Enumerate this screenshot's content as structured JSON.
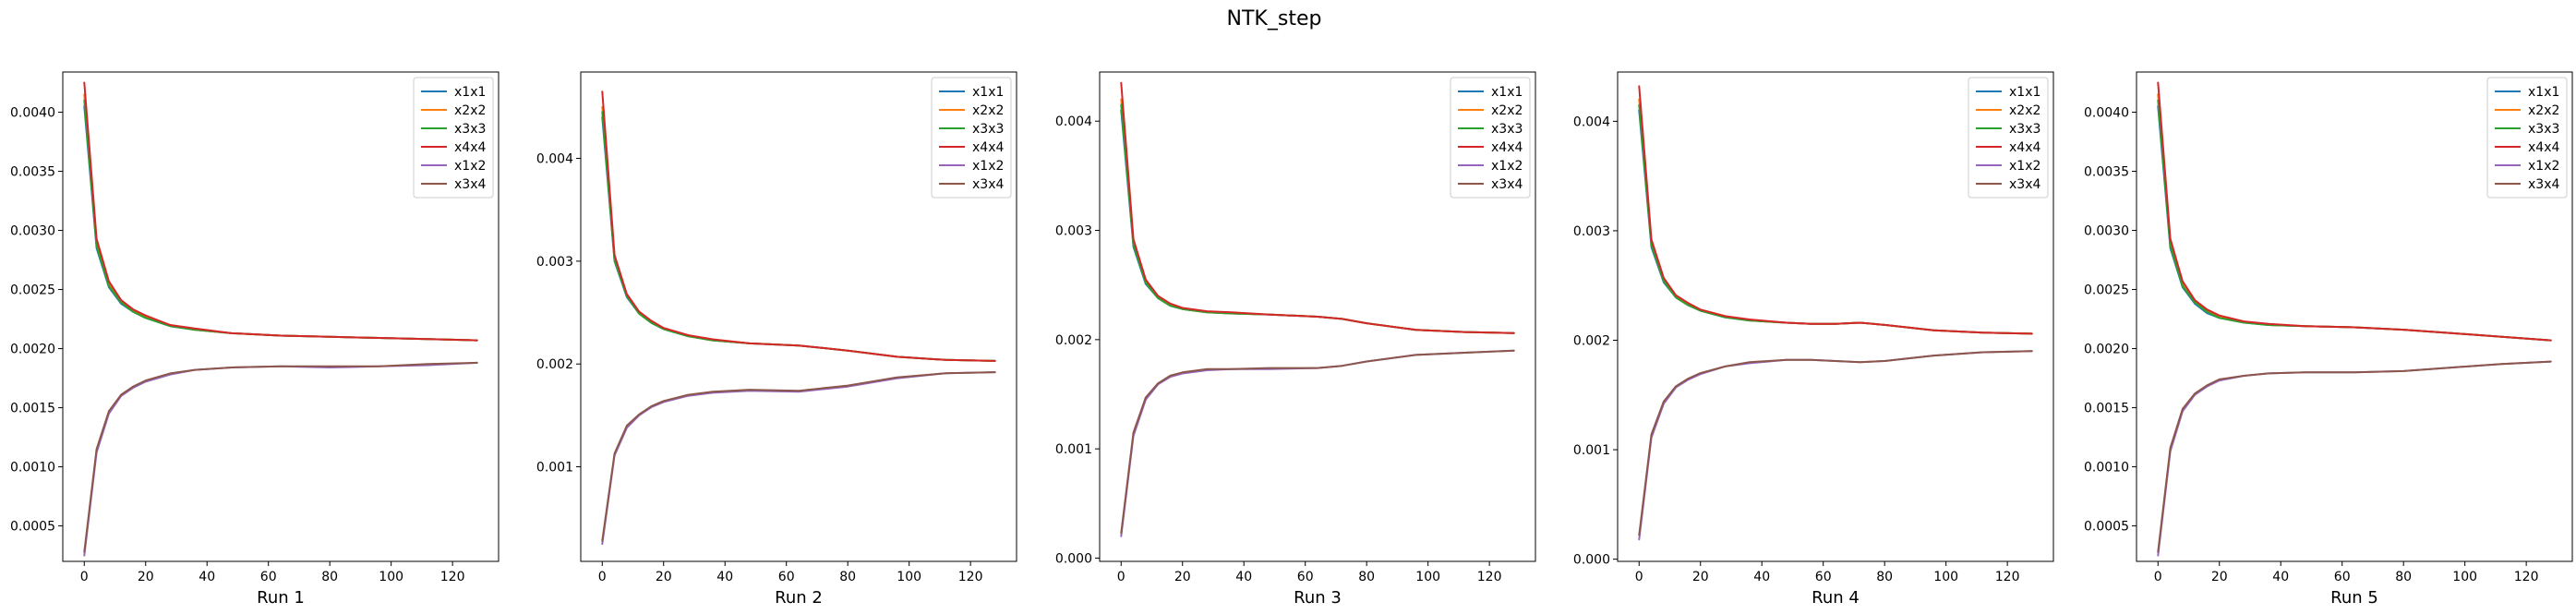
{
  "figure": {
    "suptitle": "NTK_step"
  },
  "colors": {
    "x1x1": "#1f77b4",
    "x2x2": "#ff7f0e",
    "x3x3": "#2ca02c",
    "x4x4": "#d62728",
    "x1x2": "#9467bd",
    "x3x4": "#8c564b"
  },
  "chart_data": [
    {
      "type": "line",
      "xlabel": "Run 1",
      "xlim": [
        -7,
        135
      ],
      "ylim": [
        0.0002,
        0.00434
      ],
      "xticks": [
        0,
        20,
        40,
        60,
        80,
        100,
        120
      ],
      "yticks": [
        0.0005,
        0.001,
        0.0015,
        0.002,
        0.0025,
        0.003,
        0.0035,
        0.004
      ],
      "ytick_labels": [
        "0.0005",
        "0.0010",
        "0.0015",
        "0.0020",
        "0.0025",
        "0.0030",
        "0.0035",
        "0.0040"
      ],
      "legend": "top-right",
      "x": [
        0,
        4,
        8,
        12,
        16,
        20,
        28,
        36,
        48,
        64,
        80,
        96,
        112,
        128
      ],
      "series": [
        {
          "name": "x1x1",
          "values": [
            0.00405,
            0.00285,
            0.00252,
            0.00238,
            0.00231,
            0.00226,
            0.00219,
            0.00216,
            0.00213,
            0.00211,
            0.0021,
            0.00209,
            0.00208,
            0.00207
          ]
        },
        {
          "name": "x2x2",
          "values": [
            0.00415,
            0.0029,
            0.00255,
            0.0024,
            0.00232,
            0.00227,
            0.0022,
            0.00216,
            0.00213,
            0.00211,
            0.0021,
            0.00209,
            0.00208,
            0.00207
          ]
        },
        {
          "name": "x3x3",
          "values": [
            0.0041,
            0.00287,
            0.00253,
            0.00239,
            0.00231,
            0.00226,
            0.00219,
            0.00216,
            0.00213,
            0.00211,
            0.0021,
            0.00209,
            0.00208,
            0.00207
          ]
        },
        {
          "name": "x4x4",
          "values": [
            0.00425,
            0.00293,
            0.00257,
            0.00241,
            0.00233,
            0.00228,
            0.0022,
            0.00217,
            0.00213,
            0.00211,
            0.0021,
            0.00209,
            0.00208,
            0.00207
          ]
        },
        {
          "name": "x1x2",
          "values": [
            0.00025,
            0.00112,
            0.00145,
            0.0016,
            0.00167,
            0.00172,
            0.00178,
            0.00182,
            0.00184,
            0.00185,
            0.00184,
            0.00185,
            0.00186,
            0.00188
          ]
        },
        {
          "name": "x3x4",
          "values": [
            0.00028,
            0.00115,
            0.00147,
            0.00161,
            0.00168,
            0.00173,
            0.00179,
            0.00182,
            0.00184,
            0.00185,
            0.00185,
            0.00185,
            0.00187,
            0.00188
          ]
        }
      ]
    },
    {
      "type": "line",
      "xlabel": "Run 2",
      "xlim": [
        -7,
        135
      ],
      "ylim": [
        8e-05,
        0.00484
      ],
      "xticks": [
        0,
        20,
        40,
        60,
        80,
        100,
        120
      ],
      "yticks": [
        0.001,
        0.002,
        0.003,
        0.004
      ],
      "ytick_labels": [
        "0.001",
        "0.002",
        "0.003",
        "0.004"
      ],
      "legend": "top-right",
      "x": [
        0,
        4,
        8,
        12,
        16,
        20,
        28,
        36,
        48,
        64,
        80,
        96,
        112,
        128
      ],
      "series": [
        {
          "name": "x1x1",
          "values": [
            0.0044,
            0.003,
            0.00265,
            0.00249,
            0.0024,
            0.00234,
            0.00227,
            0.00223,
            0.0022,
            0.00218,
            0.00213,
            0.00207,
            0.00204,
            0.00203
          ]
        },
        {
          "name": "x2x2",
          "values": [
            0.0045,
            0.00303,
            0.00267,
            0.0025,
            0.00241,
            0.00235,
            0.00227,
            0.00223,
            0.0022,
            0.00218,
            0.00213,
            0.00207,
            0.00204,
            0.00203
          ]
        },
        {
          "name": "x3x3",
          "values": [
            0.00445,
            0.00301,
            0.00266,
            0.00249,
            0.0024,
            0.00234,
            0.00227,
            0.00223,
            0.0022,
            0.00218,
            0.00213,
            0.00207,
            0.00204,
            0.00203
          ]
        },
        {
          "name": "x4x4",
          "values": [
            0.00465,
            0.00306,
            0.00268,
            0.00251,
            0.00242,
            0.00235,
            0.00228,
            0.00224,
            0.0022,
            0.00218,
            0.00213,
            0.00207,
            0.00204,
            0.00203
          ]
        },
        {
          "name": "x1x2",
          "values": [
            0.00025,
            0.00111,
            0.00138,
            0.0015,
            0.00158,
            0.00163,
            0.00169,
            0.00172,
            0.00174,
            0.00173,
            0.00178,
            0.00186,
            0.00191,
            0.00192
          ]
        },
        {
          "name": "x3x4",
          "values": [
            0.00028,
            0.00113,
            0.0014,
            0.00151,
            0.00159,
            0.00164,
            0.0017,
            0.00173,
            0.00175,
            0.00174,
            0.00179,
            0.00187,
            0.00191,
            0.00192
          ]
        }
      ]
    },
    {
      "type": "line",
      "xlabel": "Run 3",
      "xlim": [
        -7,
        135
      ],
      "ylim": [
        -3e-05,
        0.00445
      ],
      "xticks": [
        0,
        20,
        40,
        60,
        80,
        100,
        120
      ],
      "yticks": [
        0.0,
        0.001,
        0.002,
        0.003,
        0.004
      ],
      "ytick_labels": [
        "0.000",
        "0.001",
        "0.002",
        "0.003",
        "0.004"
      ],
      "legend": "top-right",
      "x": [
        0,
        4,
        8,
        12,
        16,
        20,
        28,
        36,
        48,
        64,
        72,
        80,
        96,
        112,
        128
      ],
      "series": [
        {
          "name": "x1x1",
          "values": [
            0.0041,
            0.00285,
            0.00251,
            0.00238,
            0.00231,
            0.00228,
            0.00225,
            0.00224,
            0.00223,
            0.00221,
            0.00219,
            0.00215,
            0.00209,
            0.00207,
            0.00206
          ]
        },
        {
          "name": "x2x2",
          "values": [
            0.0042,
            0.00288,
            0.00253,
            0.00239,
            0.00232,
            0.00228,
            0.00225,
            0.00224,
            0.00223,
            0.00221,
            0.00219,
            0.00215,
            0.00209,
            0.00207,
            0.00206
          ]
        },
        {
          "name": "x3x3",
          "values": [
            0.00415,
            0.00287,
            0.00252,
            0.00238,
            0.00231,
            0.00228,
            0.00225,
            0.00224,
            0.00223,
            0.00221,
            0.00219,
            0.00215,
            0.00209,
            0.00207,
            0.00206
          ]
        },
        {
          "name": "x4x4",
          "values": [
            0.00435,
            0.00292,
            0.00255,
            0.0024,
            0.00233,
            0.00229,
            0.00226,
            0.00225,
            0.00223,
            0.00221,
            0.00219,
            0.00215,
            0.00209,
            0.00207,
            0.00206
          ]
        },
        {
          "name": "x1x2",
          "values": [
            0.0002,
            0.00112,
            0.00145,
            0.00159,
            0.00166,
            0.00169,
            0.00172,
            0.00173,
            0.00173,
            0.00174,
            0.00176,
            0.0018,
            0.00186,
            0.00188,
            0.0019
          ]
        },
        {
          "name": "x3x4",
          "values": [
            0.00023,
            0.00115,
            0.00147,
            0.0016,
            0.00167,
            0.0017,
            0.00173,
            0.00173,
            0.00174,
            0.00174,
            0.00176,
            0.0018,
            0.00186,
            0.00188,
            0.0019
          ]
        }
      ]
    },
    {
      "type": "line",
      "xlabel": "Run 4",
      "xlim": [
        -7,
        135
      ],
      "ylim": [
        -2e-05,
        0.00445
      ],
      "xticks": [
        0,
        20,
        40,
        60,
        80,
        100,
        120
      ],
      "yticks": [
        0.0,
        0.001,
        0.002,
        0.003,
        0.004
      ],
      "ytick_labels": [
        "0.000",
        "0.001",
        "0.002",
        "0.003",
        "0.004"
      ],
      "legend": "top-right",
      "x": [
        0,
        4,
        8,
        12,
        16,
        20,
        28,
        36,
        48,
        56,
        64,
        72,
        80,
        96,
        112,
        128
      ],
      "series": [
        {
          "name": "x1x1",
          "values": [
            0.0041,
            0.00285,
            0.00253,
            0.00239,
            0.00232,
            0.00227,
            0.00221,
            0.00218,
            0.00216,
            0.00215,
            0.00215,
            0.00216,
            0.00214,
            0.00209,
            0.00207,
            0.00206
          ]
        },
        {
          "name": "x2x2",
          "values": [
            0.0042,
            0.00288,
            0.00255,
            0.0024,
            0.00233,
            0.00228,
            0.00222,
            0.00218,
            0.00216,
            0.00215,
            0.00215,
            0.00216,
            0.00214,
            0.00209,
            0.00207,
            0.00206
          ]
        },
        {
          "name": "x3x3",
          "values": [
            0.00415,
            0.00287,
            0.00254,
            0.00239,
            0.00232,
            0.00227,
            0.00221,
            0.00218,
            0.00216,
            0.00215,
            0.00215,
            0.00216,
            0.00214,
            0.00209,
            0.00207,
            0.00206
          ]
        },
        {
          "name": "x4x4",
          "values": [
            0.00432,
            0.00292,
            0.00257,
            0.00241,
            0.00234,
            0.00228,
            0.00222,
            0.00219,
            0.00216,
            0.00215,
            0.00215,
            0.00216,
            0.00214,
            0.00209,
            0.00207,
            0.00206
          ]
        },
        {
          "name": "x1x2",
          "values": [
            0.00018,
            0.00111,
            0.00142,
            0.00157,
            0.00164,
            0.00169,
            0.00176,
            0.00179,
            0.00182,
            0.00182,
            0.00181,
            0.0018,
            0.00181,
            0.00186,
            0.00189,
            0.0019
          ]
        },
        {
          "name": "x3x4",
          "values": [
            0.00022,
            0.00114,
            0.00144,
            0.00158,
            0.00165,
            0.0017,
            0.00176,
            0.0018,
            0.00182,
            0.00182,
            0.00181,
            0.0018,
            0.00181,
            0.00186,
            0.00189,
            0.0019
          ]
        }
      ]
    },
    {
      "type": "line",
      "xlabel": "Run 5",
      "xlim": [
        -7,
        135
      ],
      "ylim": [
        0.0002,
        0.00434
      ],
      "xticks": [
        0,
        20,
        40,
        60,
        80,
        100,
        120
      ],
      "yticks": [
        0.0005,
        0.001,
        0.0015,
        0.002,
        0.0025,
        0.003,
        0.0035,
        0.004
      ],
      "ytick_labels": [
        "0.0005",
        "0.0010",
        "0.0015",
        "0.0020",
        "0.0025",
        "0.0030",
        "0.0035",
        "0.0040"
      ],
      "legend": "top-right",
      "x": [
        0,
        4,
        8,
        12,
        16,
        20,
        28,
        36,
        48,
        64,
        80,
        96,
        112,
        128
      ],
      "series": [
        {
          "name": "x1x1",
          "values": [
            0.00405,
            0.00285,
            0.00252,
            0.00238,
            0.0023,
            0.00226,
            0.00222,
            0.0022,
            0.00219,
            0.00218,
            0.00216,
            0.00213,
            0.0021,
            0.00207
          ]
        },
        {
          "name": "x2x2",
          "values": [
            0.00415,
            0.0029,
            0.00255,
            0.0024,
            0.00232,
            0.00227,
            0.00223,
            0.0022,
            0.00219,
            0.00218,
            0.00216,
            0.00213,
            0.0021,
            0.00207
          ]
        },
        {
          "name": "x3x3",
          "values": [
            0.0041,
            0.00287,
            0.00253,
            0.00239,
            0.00231,
            0.00226,
            0.00222,
            0.0022,
            0.00219,
            0.00218,
            0.00216,
            0.00213,
            0.0021,
            0.00207
          ]
        },
        {
          "name": "x4x4",
          "values": [
            0.00425,
            0.00293,
            0.00257,
            0.00241,
            0.00233,
            0.00228,
            0.00223,
            0.00221,
            0.00219,
            0.00218,
            0.00216,
            0.00213,
            0.0021,
            0.00207
          ]
        },
        {
          "name": "x1x2",
          "values": [
            0.00025,
            0.00113,
            0.00147,
            0.00161,
            0.00168,
            0.00173,
            0.00177,
            0.00179,
            0.0018,
            0.0018,
            0.00181,
            0.00184,
            0.00187,
            0.00189
          ]
        },
        {
          "name": "x3x4",
          "values": [
            0.00028,
            0.00116,
            0.00149,
            0.00162,
            0.00169,
            0.00174,
            0.00177,
            0.00179,
            0.0018,
            0.0018,
            0.00181,
            0.00184,
            0.00187,
            0.00189
          ]
        }
      ]
    }
  ]
}
